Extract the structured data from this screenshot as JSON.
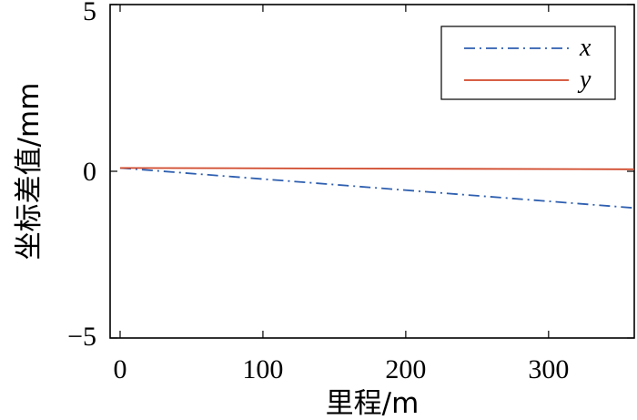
{
  "chart_data": {
    "type": "line",
    "title": "",
    "xlabel": "里程/m",
    "ylabel": "坐标差值/mm",
    "xlim": [
      -7,
      360
    ],
    "ylim": [
      -5,
      5
    ],
    "x_ticks": [
      0,
      100,
      200,
      300
    ],
    "x_tick_labels": [
      "0",
      "100",
      "200",
      "300"
    ],
    "y_ticks": [
      5,
      0,
      -5
    ],
    "y_tick_labels": [
      "5",
      "0",
      "−5"
    ],
    "grid": false,
    "legend_position": "top-right",
    "series": [
      {
        "name": "x",
        "color": "#2e5fb0",
        "style": "dash-dot",
        "x": [
          0,
          360
        ],
        "y": [
          0.1,
          -1.1
        ]
      },
      {
        "name": "y",
        "color": "#d0482a",
        "style": "solid",
        "x": [
          0,
          360
        ],
        "y": [
          0.1,
          0.06
        ]
      }
    ]
  }
}
